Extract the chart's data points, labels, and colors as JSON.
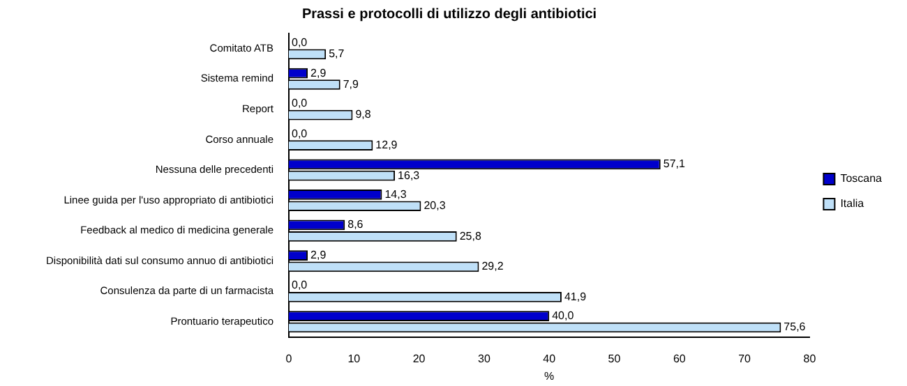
{
  "chart_data": {
    "type": "bar",
    "orientation": "horizontal",
    "title": "Prassi e protocolli di utilizzo degli antibiotici",
    "xlabel": "%",
    "categories": [
      "Comitato ATB",
      "Sistema remind",
      "Report",
      "Corso annuale",
      "Nessuna delle precedenti",
      "Linee guida per l'uso appropriato di antibiotici",
      "Feedback al medico di medicina generale",
      "Disponibilità dati sul consumo annuo di antibiotici",
      "Consulenza da parte di un farmacista",
      "Prontuario terapeutico"
    ],
    "series": [
      {
        "name": "Toscana",
        "color": "#0000cc",
        "values": [
          0.0,
          2.9,
          0.0,
          0.0,
          57.1,
          14.3,
          8.6,
          2.9,
          0.0,
          40.0
        ],
        "value_labels": [
          "0,0",
          "2,9",
          "0,0",
          "0,0",
          "57,1",
          "14,3",
          "8,6",
          "2,9",
          "0,0",
          "40,0"
        ]
      },
      {
        "name": "Italia",
        "color": "#bfe0f8",
        "values": [
          5.7,
          7.9,
          9.8,
          12.9,
          16.3,
          20.3,
          25.8,
          29.2,
          41.9,
          75.6
        ],
        "value_labels": [
          "5,7",
          "7,9",
          "9,8",
          "12,9",
          "16,3",
          "20,3",
          "25,8",
          "29,2",
          "41,9",
          "75,6"
        ]
      }
    ],
    "xlim": [
      0,
      80
    ],
    "xticks": [
      0,
      10,
      20,
      30,
      40,
      50,
      60,
      70,
      80
    ],
    "grid": false,
    "legend": "right"
  }
}
